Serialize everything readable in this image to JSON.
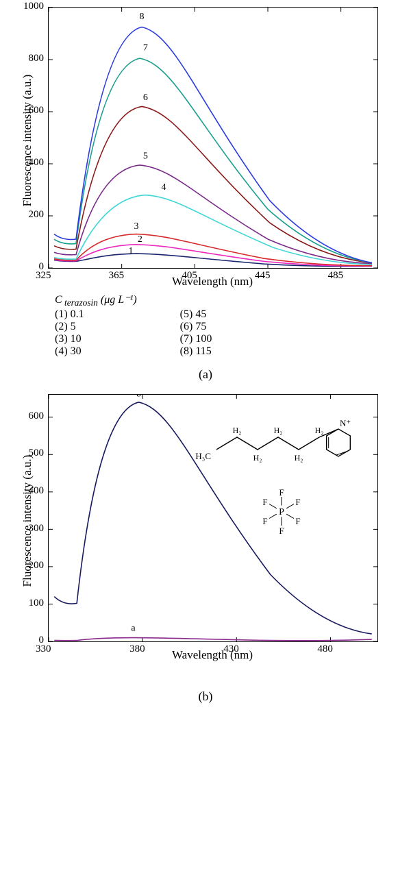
{
  "chartA": {
    "type": "line",
    "xlabel": "Wavelength (nm)",
    "ylabel": "Fluorescence intensity (a.u.)",
    "xlim": [
      325,
      505
    ],
    "ylim": [
      0,
      1000
    ],
    "xticks": [
      325,
      365,
      405,
      445,
      485
    ],
    "yticks": [
      0,
      200,
      400,
      600,
      800,
      1000
    ],
    "label_fontsize": 17,
    "tick_fontsize": 15,
    "curve_label_fontsize": 14,
    "background": "#ffffff",
    "border": "#000000",
    "series": [
      {
        "id": "1",
        "color": "#1a2570",
        "peak": 55,
        "peak_x": 373,
        "start_y": 30,
        "label_x": 370,
        "label_y": 55
      },
      {
        "id": "2",
        "color": "#ec29c0",
        "peak": 90,
        "peak_x": 373,
        "start_y": 32,
        "label_x": 375,
        "label_y": 100
      },
      {
        "id": "3",
        "color": "#d82a2a",
        "peak": 130,
        "peak_x": 373,
        "start_y": 35,
        "label_x": 373,
        "label_y": 150
      },
      {
        "id": "4",
        "color": "#3fd6d6",
        "peak": 280,
        "peak_x": 378,
        "start_y": 40,
        "label_x": 388,
        "label_y": 300
      },
      {
        "id": "5",
        "color": "#7a2a8a",
        "peak": 395,
        "peak_x": 375,
        "start_y": 60,
        "label_x": 378,
        "label_y": 420
      },
      {
        "id": "6",
        "color": "#8b1a1a",
        "peak": 620,
        "peak_x": 376,
        "start_y": 85,
        "label_x": 378,
        "label_y": 645
      },
      {
        "id": "7",
        "color": "#1a9e8e",
        "peak": 805,
        "peak_x": 375,
        "start_y": 110,
        "label_x": 378,
        "label_y": 835
      },
      {
        "id": "8",
        "color": "#2b3be0",
        "peak": 925,
        "peak_x": 376,
        "start_y": 130,
        "label_x": 376,
        "label_y": 955
      }
    ],
    "legend_title_prefix": "C",
    "legend_title_sub": " terazosin",
    "legend_title_unit": " (μg L⁻¹)",
    "legend_left": [
      {
        "n": "(1)",
        "v": "0.1"
      },
      {
        "n": "(2)",
        "v": "5"
      },
      {
        "n": "(3)",
        "v": "10"
      },
      {
        "n": "(4)",
        "v": "30"
      }
    ],
    "legend_right": [
      {
        "n": "(5)",
        "v": "45"
      },
      {
        "n": "(6)",
        "v": "75"
      },
      {
        "n": "(7)",
        "v": "100"
      },
      {
        "n": "(8)",
        "v": "115"
      }
    ],
    "panel_label": "(a)"
  },
  "chartB": {
    "type": "line",
    "xlabel": "Wavelength (nm)",
    "ylabel": "Fluorescence intensity (a.u.)",
    "xlim": [
      330,
      505
    ],
    "ylim": [
      0,
      660
    ],
    "xticks": [
      330,
      380,
      430,
      480
    ],
    "yticks": [
      0,
      100,
      200,
      300,
      400,
      500,
      600
    ],
    "label_fontsize": 17,
    "tick_fontsize": 15,
    "background": "#ffffff",
    "border": "#000000",
    "series": [
      {
        "id": "a",
        "color": "#8a2a8a",
        "peak": 10,
        "peak_x": 375,
        "start_y": 3,
        "label_x": 375,
        "label_y": 28
      },
      {
        "id": "b",
        "color": "#1a1a60",
        "peak": 640,
        "peak_x": 378,
        "start_y": 120,
        "label_x": 378,
        "label_y": 655
      }
    ],
    "molecule": {
      "line_color": "#000000",
      "text_color": "#000000",
      "labels": {
        "ch3": "H₃C",
        "ch2_top": "H₂",
        "ch2_bot": "H₂",
        "nplus": "N⁺",
        "P": "P",
        "F": "F"
      }
    },
    "panel_label": "(b)"
  }
}
